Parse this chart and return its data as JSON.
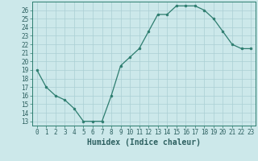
{
  "title": "",
  "xlabel": "Humidex (Indice chaleur)",
  "ylabel": "",
  "x_values": [
    0,
    1,
    2,
    3,
    4,
    5,
    6,
    7,
    8,
    9,
    10,
    11,
    12,
    13,
    14,
    15,
    16,
    17,
    18,
    19,
    20,
    21,
    22,
    23
  ],
  "y_values": [
    19,
    17,
    16,
    15.5,
    14.5,
    13,
    13,
    13,
    16,
    19.5,
    20.5,
    21.5,
    23.5,
    25.5,
    25.5,
    26.5,
    26.5,
    26.5,
    26,
    25,
    23.5,
    22,
    21.5,
    21.5
  ],
  "line_color": "#2d7d6f",
  "marker_color": "#2d7d6f",
  "bg_color": "#cce8ea",
  "grid_color": "#aacfd4",
  "ylim_min": 12.5,
  "ylim_max": 27.0,
  "xlim_min": -0.5,
  "xlim_max": 23.5,
  "yticks": [
    13,
    14,
    15,
    16,
    17,
    18,
    19,
    20,
    21,
    22,
    23,
    24,
    25,
    26
  ],
  "xticks": [
    0,
    1,
    2,
    3,
    4,
    5,
    6,
    7,
    8,
    9,
    10,
    11,
    12,
    13,
    14,
    15,
    16,
    17,
    18,
    19,
    20,
    21,
    22,
    23
  ],
  "tick_fontsize": 5.5,
  "xlabel_fontsize": 7.0,
  "label_color": "#2d6060"
}
